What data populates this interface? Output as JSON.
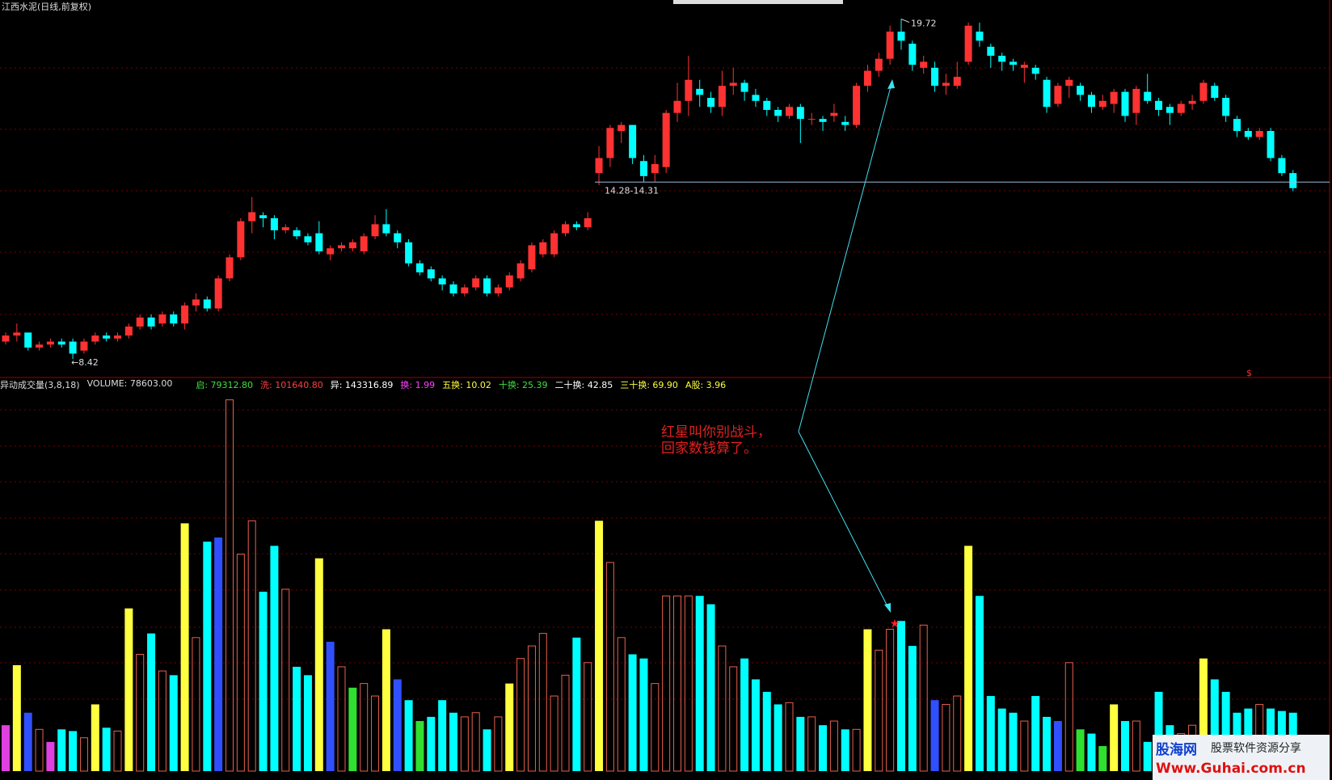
{
  "title": "江西水泥(日线,前复权)",
  "chart_data": [
    {
      "type": "candlestick",
      "up_color": "#ff3232",
      "down_color": "#00ffff",
      "ylim": [
        7.86,
        19.95
      ],
      "open": [
        9.0,
        9.2,
        9.3,
        8.8,
        8.9,
        9.0,
        9.0,
        8.7,
        9.0,
        9.2,
        9.1,
        9.2,
        9.5,
        9.8,
        9.6,
        9.9,
        9.6,
        10.2,
        10.4,
        10.1,
        11.1,
        11.8,
        13.0,
        13.2,
        13.1,
        12.7,
        12.7,
        12.5,
        12.6,
        11.9,
        12.1,
        12.1,
        12.0,
        12.5,
        12.9,
        12.6,
        12.3,
        11.6,
        11.4,
        11.1,
        10.9,
        10.6,
        10.8,
        11.1,
        10.6,
        10.8,
        11.1,
        11.4,
        11.9,
        11.9,
        12.6,
        12.9,
        12.8,
        14.6,
        15.1,
        16.0,
        16.2,
        15.0,
        14.6,
        14.8,
        16.6,
        17.0,
        17.4,
        17.1,
        16.8,
        17.5,
        17.6,
        17.2,
        17.0,
        16.7,
        16.5,
        16.8,
        16.4,
        16.4,
        16.5,
        16.3,
        16.2,
        17.5,
        18.0,
        18.4,
        19.3,
        18.9,
        18.1,
        18.1,
        17.5,
        17.5,
        18.3,
        19.3,
        18.8,
        18.5,
        18.3,
        18.1,
        18.1,
        17.7,
        16.9,
        17.5,
        17.5,
        17.2,
        16.8,
        16.9,
        17.3,
        16.6,
        17.3,
        17.0,
        16.8,
        16.6,
        16.9,
        17.0,
        17.5,
        17.1,
        16.4,
        16.0,
        15.8,
        16.0,
        15.1,
        14.6
      ],
      "close": [
        9.2,
        9.3,
        8.8,
        8.9,
        9.0,
        8.9,
        8.6,
        9.0,
        9.2,
        9.1,
        9.2,
        9.5,
        9.8,
        9.5,
        9.9,
        9.6,
        10.2,
        10.4,
        10.1,
        11.1,
        11.8,
        13.0,
        13.3,
        13.1,
        12.7,
        12.8,
        12.5,
        12.3,
        12.0,
        12.1,
        12.2,
        12.3,
        12.5,
        12.9,
        12.6,
        12.3,
        11.6,
        11.3,
        11.1,
        10.9,
        10.6,
        10.8,
        11.1,
        10.6,
        10.8,
        11.2,
        11.6,
        12.2,
        12.3,
        12.6,
        12.9,
        12.8,
        13.1,
        15.1,
        16.1,
        16.2,
        15.1,
        14.5,
        14.9,
        16.6,
        17.0,
        17.7,
        17.2,
        16.8,
        17.5,
        17.6,
        17.3,
        17.0,
        16.7,
        16.5,
        16.8,
        16.4,
        16.4,
        16.3,
        16.6,
        16.2,
        17.5,
        18.0,
        18.4,
        19.3,
        19.0,
        18.2,
        18.3,
        17.5,
        17.6,
        17.8,
        19.5,
        19.0,
        18.5,
        18.3,
        18.2,
        18.2,
        17.9,
        16.8,
        17.5,
        17.7,
        17.2,
        16.8,
        17.0,
        17.3,
        16.5,
        17.4,
        17.0,
        16.7,
        16.6,
        16.9,
        17.0,
        17.6,
        17.1,
        16.5,
        16.0,
        15.8,
        16.0,
        15.1,
        14.6,
        14.1
      ],
      "high": [
        9.3,
        9.6,
        9.3,
        9.0,
        9.1,
        9.1,
        9.1,
        9.1,
        9.3,
        9.3,
        9.3,
        9.6,
        9.9,
        9.9,
        10.0,
        10.0,
        10.3,
        10.6,
        10.5,
        11.2,
        11.9,
        13.1,
        13.8,
        13.3,
        13.2,
        12.9,
        12.8,
        12.6,
        13.0,
        12.2,
        12.3,
        12.4,
        12.6,
        13.2,
        13.4,
        12.7,
        12.4,
        11.7,
        11.5,
        11.2,
        11.0,
        10.9,
        11.2,
        11.2,
        10.9,
        11.3,
        11.7,
        12.3,
        12.4,
        12.7,
        13.0,
        13.0,
        13.3,
        15.5,
        16.2,
        16.3,
        16.2,
        15.2,
        15.2,
        16.7,
        17.6,
        18.5,
        17.7,
        17.3,
        18.0,
        18.1,
        17.7,
        17.4,
        17.1,
        16.8,
        16.9,
        16.9,
        16.6,
        16.5,
        16.9,
        16.5,
        17.6,
        18.2,
        18.6,
        19.5,
        19.72,
        19.0,
        18.5,
        18.3,
        17.9,
        18.3,
        19.6,
        19.6,
        18.9,
        18.6,
        18.4,
        18.3,
        18.2,
        17.8,
        17.6,
        17.8,
        17.6,
        17.3,
        17.2,
        17.4,
        17.4,
        17.5,
        17.9,
        17.1,
        16.9,
        17.0,
        17.2,
        17.7,
        17.6,
        17.2,
        16.5,
        16.1,
        16.1,
        16.1,
        15.2,
        14.7
      ],
      "low": [
        8.9,
        9.0,
        8.7,
        8.7,
        8.8,
        8.8,
        8.42,
        8.6,
        8.9,
        9.0,
        9.0,
        9.1,
        9.4,
        9.4,
        9.5,
        9.5,
        9.4,
        10.0,
        10.0,
        10.0,
        11.0,
        11.7,
        12.6,
        12.8,
        12.4,
        12.6,
        12.4,
        12.2,
        11.9,
        11.7,
        12.0,
        12.0,
        11.9,
        12.4,
        12.5,
        12.1,
        11.5,
        11.2,
        11.0,
        10.7,
        10.5,
        10.5,
        10.7,
        10.5,
        10.5,
        10.7,
        11.0,
        11.3,
        11.8,
        11.8,
        12.5,
        12.7,
        12.7,
        14.2,
        14.8,
        15.6,
        14.9,
        14.3,
        14.3,
        14.6,
        16.3,
        16.5,
        16.8,
        16.6,
        16.5,
        17.2,
        17.0,
        16.8,
        16.5,
        16.3,
        16.4,
        15.6,
        16.2,
        16.0,
        16.3,
        16.0,
        16.1,
        17.3,
        17.8,
        18.2,
        18.7,
        18.0,
        17.9,
        17.3,
        17.2,
        17.4,
        18.2,
        18.8,
        18.1,
        18.0,
        18.0,
        17.6,
        17.7,
        16.6,
        16.8,
        17.1,
        17.0,
        16.6,
        16.7,
        16.6,
        16.3,
        16.2,
        16.9,
        16.5,
        16.2,
        16.5,
        16.7,
        16.9,
        17.0,
        16.3,
        15.8,
        15.7,
        15.7,
        15.0,
        14.5,
        14.0
      ],
      "high_label": 19.72,
      "low_label": {
        "value": 8.42,
        "label": "←8.42"
      },
      "support_line": {
        "value": 14.3,
        "label": "14.28-14.31",
        "color": "#a0b8d8"
      },
      "annotations": [
        "红星叫你别战斗，",
        "回家数钱算了。"
      ],
      "marker": "$"
    },
    {
      "type": "bar",
      "title": "异动成交量(3,8,18)",
      "subtitle": "VOLUME: 78603.00",
      "ylim": [
        0,
        520000
      ],
      "hollow_color": "#e8604c",
      "panel_stats": [
        {
          "text": "启: 79312.80",
          "color": "#40e040"
        },
        {
          "text": "洗: 101640.80",
          "color": "#ff4040"
        },
        {
          "text": "异: 143316.89",
          "color": "#ffffff"
        },
        {
          "text": "换: 1.99",
          "color": "#ff40ff"
        },
        {
          "text": "五换: 10.02",
          "color": "#ffff40"
        },
        {
          "text": "十换: 25.39",
          "color": "#40e040"
        },
        {
          "text": "二十换: 42.85",
          "color": "#ffffff"
        },
        {
          "text": "三十换: 69.90",
          "color": "#ffff40"
        },
        {
          "text": "A股: 3.96",
          "color": "#ffff40"
        }
      ],
      "values": [
        61800,
        142600,
        78600,
        56200,
        39300,
        56200,
        53900,
        44900,
        89800,
        58400,
        53900,
        219000,
        157200,
        185300,
        134800,
        129100,
        333500,
        179700,
        308800,
        314400,
        499700,
        292000,
        336900,
        241400,
        303200,
        244800,
        140400,
        129100,
        286400,
        174100,
        140400,
        112300,
        117900,
        101100,
        190900,
        123500,
        95500,
        67400,
        73000,
        95500,
        78600,
        73000,
        78600,
        56200,
        73000,
        117900,
        151600,
        168500,
        185300,
        101100,
        129100,
        179700,
        146000,
        336900,
        280800,
        179700,
        157200,
        151600,
        117900,
        235800,
        235800,
        235800,
        235800,
        224600,
        168500,
        140400,
        151600,
        123500,
        106700,
        89800,
        92100,
        73000,
        73000,
        61800,
        67400,
        56200,
        56200,
        190900,
        162800,
        190900,
        202100,
        168500,
        196500,
        95500,
        89800,
        101100,
        303200,
        235800,
        101100,
        84200,
        78600,
        67400,
        101100,
        73000,
        67400,
        146000,
        56200,
        50500,
        33700,
        89800,
        67400,
        67400,
        39300,
        106700,
        61800,
        50500,
        61800,
        151600,
        123500,
        106700,
        78600,
        84200,
        89800,
        84200,
        80900,
        78603
      ],
      "colors": [
        "#e040e0",
        "#ffff40",
        "#3050ff",
        "#e8604c",
        "#e040e0",
        "#00ffff",
        "#00ffff",
        "#e8604c",
        "#ffff40",
        "#00ffff",
        "#e8604c",
        "#ffff40",
        "#e8604c",
        "#00ffff",
        "#e8604c",
        "#00ffff",
        "#ffff40",
        "#e8604c",
        "#00ffff",
        "#3050ff",
        "#e8604c",
        "#e8604c",
        "#e8604c",
        "#00ffff",
        "#00ffff",
        "#e8604c",
        "#00ffff",
        "#00ffff",
        "#ffff40",
        "#3050ff",
        "#e8604c",
        "#30e030",
        "#e8604c",
        "#e8604c",
        "#ffff40",
        "#3050ff",
        "#00ffff",
        "#30e030",
        "#00ffff",
        "#00ffff",
        "#00ffff",
        "#e8604c",
        "#e8604c",
        "#00ffff",
        "#e8604c",
        "#ffff40",
        "#e8604c",
        "#e8604c",
        "#e8604c",
        "#e8604c",
        "#e8604c",
        "#00ffff",
        "#e8604c",
        "#ffff40",
        "#e8604c",
        "#e8604c",
        "#00ffff",
        "#00ffff",
        "#e8604c",
        "#e8604c",
        "#e8604c",
        "#e8604c",
        "#00ffff",
        "#00ffff",
        "#e8604c",
        "#e8604c",
        "#00ffff",
        "#00ffff",
        "#00ffff",
        "#00ffff",
        "#e8604c",
        "#00ffff",
        "#e8604c",
        "#00ffff",
        "#e8604c",
        "#00ffff",
        "#e8604c",
        "#ffff40",
        "#e8604c",
        "#e8604c",
        "#00ffff",
        "#00ffff",
        "#e8604c",
        "#3050ff",
        "#e8604c",
        "#e8604c",
        "#ffff40",
        "#00ffff",
        "#00ffff",
        "#00ffff",
        "#00ffff",
        "#e8604c",
        "#00ffff",
        "#00ffff",
        "#3050ff",
        "#e8604c",
        "#30e030",
        "#00ffff",
        "#30e030",
        "#ffff40",
        "#00ffff",
        "#e8604c",
        "#00ffff",
        "#00ffff",
        "#00ffff",
        "#e8604c",
        "#e8604c",
        "#ffff40",
        "#00ffff",
        "#00ffff",
        "#00ffff",
        "#00ffff",
        "#e8604c",
        "#00ffff",
        "#00ffff",
        "#00ffff"
      ]
    }
  ],
  "watermark": {
    "name": "股海网",
    "slogan": "股票软件资源分享",
    "url": "Www.Guhai.com.cn"
  }
}
